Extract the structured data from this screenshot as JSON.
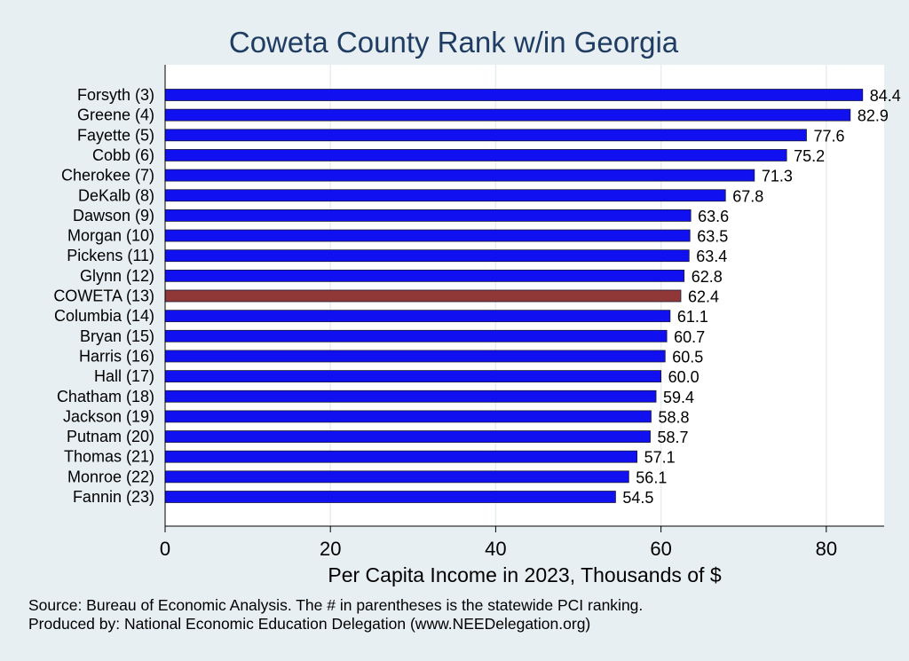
{
  "chart_data": {
    "type": "bar",
    "orientation": "horizontal",
    "title": "Coweta County Rank w/in Georgia",
    "xlabel": "Per Capita Income in 2023, Thousands of $",
    "ylabel": "",
    "xlim": [
      0,
      87
    ],
    "xticks": [
      0,
      20,
      40,
      60,
      80
    ],
    "grid": true,
    "categories": [
      "Forsyth  (3)",
      "Greene  (4)",
      "Fayette  (5)",
      "Cobb  (6)",
      "Cherokee  (7)",
      "DeKalb  (8)",
      "Dawson  (9)",
      "Morgan (10)",
      "Pickens (11)",
      "Glynn (12)",
      "COWETA (13)",
      "Columbia (14)",
      "Bryan (15)",
      "Harris (16)",
      "Hall (17)",
      "Chatham (18)",
      "Jackson (19)",
      "Putnam (20)",
      "Thomas (21)",
      "Monroe (22)",
      "Fannin (23)"
    ],
    "values": [
      84.4,
      82.9,
      77.6,
      75.2,
      71.3,
      67.8,
      63.6,
      63.5,
      63.4,
      62.8,
      62.4,
      61.1,
      60.7,
      60.5,
      60.0,
      59.4,
      58.8,
      58.7,
      57.1,
      56.1,
      54.5
    ],
    "value_labels": [
      "84.4",
      "82.9",
      "77.6",
      "75.2",
      "71.3",
      "67.8",
      "63.6",
      "63.5",
      "63.4",
      "62.8",
      "62.4",
      "61.1",
      "60.7",
      "60.5",
      "60.0",
      "59.4",
      "58.8",
      "58.7",
      "57.1",
      "56.1",
      "54.5"
    ],
    "highlight_category": "COWETA (13)",
    "colors": {
      "bar": "#1010f0",
      "highlight": "#903838",
      "title": "#1f3d63",
      "background": "#e8eff2",
      "plot_background": "#ffffff",
      "grid": "#e6eef2"
    }
  },
  "notes": {
    "source": "Source: Bureau of Economic Analysis. The # in parentheses is the statewide PCI ranking.",
    "produced_by": "Produced by: National Economic Education Delegation (www.NEEDelegation.org)"
  }
}
